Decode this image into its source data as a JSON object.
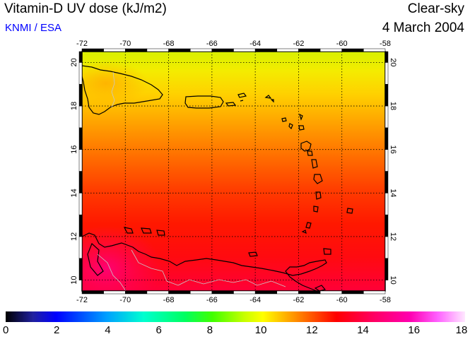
{
  "header": {
    "title": "Vitamin-D UV dose (kJ/m2)",
    "credit": "KNMI / ESA",
    "sky": "Clear-sky",
    "date": "4 March 2004"
  },
  "map": {
    "lon_ticks": [
      "-72",
      "-70",
      "-68",
      "-66",
      "-64",
      "-62",
      "-60",
      "-58"
    ],
    "lat_ticks": [
      "20",
      "18",
      "16",
      "14",
      "12",
      "10"
    ],
    "lon_range": [
      -72,
      -58
    ],
    "lat_range": [
      9.5,
      20.5
    ],
    "grid": true
  },
  "colorbar": {
    "labels": [
      "0",
      "2",
      "4",
      "6",
      "8",
      "10",
      "12",
      "14",
      "16",
      "18"
    ],
    "range": [
      0,
      18
    ]
  },
  "colors": {
    "credit": "#0000ff",
    "coast": "#000000",
    "border": "#c8c8c8"
  }
}
